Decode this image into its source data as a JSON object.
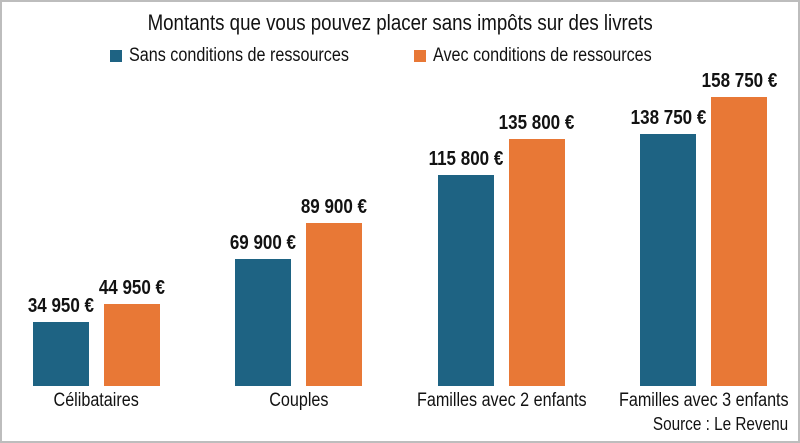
{
  "title": "Montants que vous pouvez placer sans impôts sur des livrets",
  "legend": {
    "items": [
      {
        "label": "Sans conditions de ressources",
        "color": "#1e6383"
      },
      {
        "label": "Avec conditions de ressources",
        "color": "#e87836"
      }
    ]
  },
  "source": "Source : Le Revenu",
  "colors": {
    "series_blue": "#1e6383",
    "series_orange": "#e87836",
    "frame_border": "#bdbdbd",
    "text": "#121212",
    "background": "#ffffff"
  },
  "chart_data": {
    "type": "bar",
    "title": "Montants que vous pouvez placer sans impôts sur des livrets",
    "categories": [
      "Célibataires",
      "Couples",
      "Familles avec 2 enfants",
      "Familles avec 3 enfants"
    ],
    "series": [
      {
        "name": "Sans conditions de ressources",
        "color": "#1e6383",
        "values": [
          34950,
          69900,
          115800,
          138750
        ],
        "value_labels": [
          "34 950 €",
          "69 900 €",
          "115 800 €",
          "138 750 €"
        ]
      },
      {
        "name": "Avec conditions de ressources",
        "color": "#e87836",
        "values": [
          44950,
          89900,
          135800,
          158750
        ],
        "value_labels": [
          "44 950 €",
          "89 900 €",
          "135 800 €",
          "158 750 €"
        ]
      }
    ],
    "unit": "€",
    "ylim": [
      0,
      160000
    ],
    "grid": false,
    "axes_visible": false,
    "legend_position": "top",
    "value_labels_position": "above-bar",
    "source": "Source : Le Revenu"
  }
}
